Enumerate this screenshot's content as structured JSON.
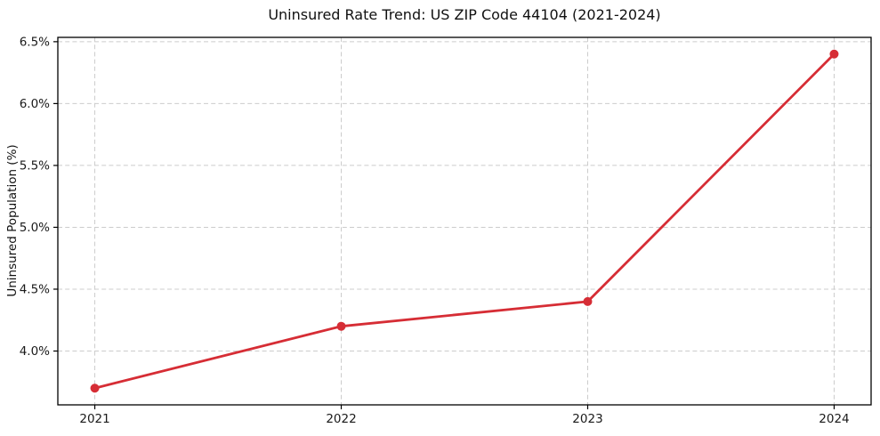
{
  "page": {
    "background_color": "#ffffff"
  },
  "chart_data": {
    "type": "line",
    "title": "Uninsured Rate Trend: US ZIP Code 44104 (2021-2024)",
    "xlabel": "",
    "ylabel": "Uninsured Population (%)",
    "x": [
      2021,
      2022,
      2023,
      2024
    ],
    "x_tick_labels": [
      "2021",
      "2022",
      "2023",
      "2024"
    ],
    "series": [
      {
        "name": "Uninsured Rate",
        "values": [
          3.7,
          4.2,
          4.4,
          6.4
        ],
        "color": "#d62d35",
        "marker": "circle",
        "line_width": 2.8,
        "marker_radius": 5
      }
    ],
    "y_ticks": [
      4.0,
      4.5,
      5.0,
      5.5,
      6.0,
      6.5
    ],
    "y_tick_labels": [
      "4.0%",
      "4.5%",
      "5.0%",
      "5.5%",
      "6.0%",
      "6.5%"
    ],
    "xlim": [
      2020.85,
      2024.15
    ],
    "ylim": [
      3.565,
      6.535
    ],
    "grid": true,
    "grid_color": "#cccccc",
    "grid_style": "dashed",
    "legend_position": "none"
  }
}
